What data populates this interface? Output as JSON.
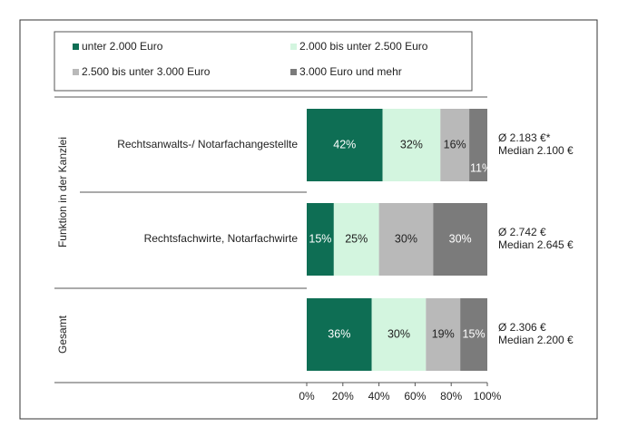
{
  "chart_data": {
    "type": "stacked-bar-horizontal",
    "group_labels": [
      "Funktion in der Kanzlei",
      "Gesamt"
    ],
    "categories": [
      "Rechtsanwalts-/ Notarfachangestellte",
      "Rechtsfachwirte, Notarfachwirte",
      null
    ],
    "series": [
      {
        "name": "unter 2.000 Euro",
        "color": "#0e6e54",
        "values": [
          42,
          15,
          36
        ],
        "value_labels": [
          "42%",
          "15%",
          "36%"
        ]
      },
      {
        "name": "2.000 bis unter 2.500 Euro",
        "color": "#d3f5df",
        "values": [
          32,
          25,
          30
        ],
        "value_labels": [
          "32%",
          "25%",
          "30%"
        ]
      },
      {
        "name": "2.500 bis unter 3.000 Euro",
        "color": "#b9b9b9",
        "values": [
          16,
          30,
          19
        ],
        "value_labels": [
          "16%",
          "30%",
          "19%"
        ]
      },
      {
        "name": "3.000 Euro und mehr",
        "color": "#7b7b7b",
        "values": [
          11,
          30,
          15
        ],
        "value_labels": [
          "11%",
          "30%",
          "15%"
        ]
      }
    ],
    "annotations": [
      [
        "Ø 2.183 €*",
        "Median 2.100 €"
      ],
      [
        "Ø 2.742 €",
        "Median 2.645 €"
      ],
      [
        "Ø 2.306 €",
        "Median 2.200 €"
      ]
    ],
    "xlim": [
      0,
      100
    ],
    "xticks": [
      {
        "value": 0,
        "label": "0%"
      },
      {
        "value": 20,
        "label": "20%"
      },
      {
        "value": 40,
        "label": "40%"
      },
      {
        "value": 60,
        "label": "60%"
      },
      {
        "value": 80,
        "label": "80%"
      },
      {
        "value": 100,
        "label": "100%"
      }
    ]
  }
}
